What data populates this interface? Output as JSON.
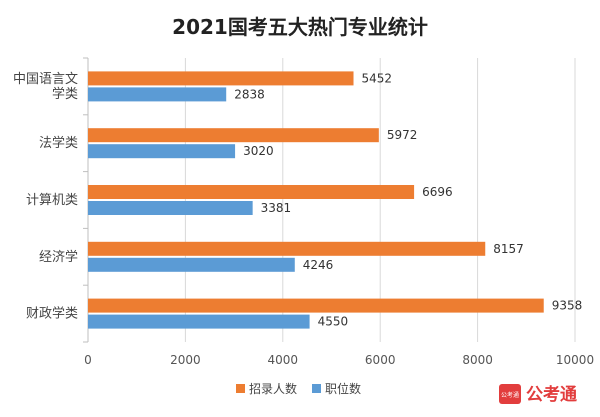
{
  "chart_data": {
    "type": "bar",
    "orientation": "horizontal",
    "title": "2021国考五大热门专业统计",
    "categories": [
      "中国语言文学类",
      "法学类",
      "计算机类",
      "经济学",
      "财政学类"
    ],
    "category_lines": [
      [
        "中国语言文",
        "学类"
      ],
      [
        "法学类"
      ],
      [
        "计算机类"
      ],
      [
        "经济学"
      ],
      [
        "财政学类"
      ]
    ],
    "series": [
      {
        "name": "招录人数",
        "values": [
          5452,
          5972,
          6696,
          8157,
          9358
        ],
        "color": "#ed7d31"
      },
      {
        "name": "职位数",
        "values": [
          2838,
          3020,
          3381,
          4246,
          4550
        ],
        "color": "#5b9bd5"
      }
    ],
    "xlim": [
      0,
      10000
    ],
    "xticks": [
      "0",
      "2000",
      "4000",
      "6000",
      "8000",
      "10000"
    ],
    "grid": true,
    "legend": "bottom"
  },
  "watermark": {
    "text": "公考通",
    "icon_text": "公考通",
    "color": "#e23d3d"
  }
}
